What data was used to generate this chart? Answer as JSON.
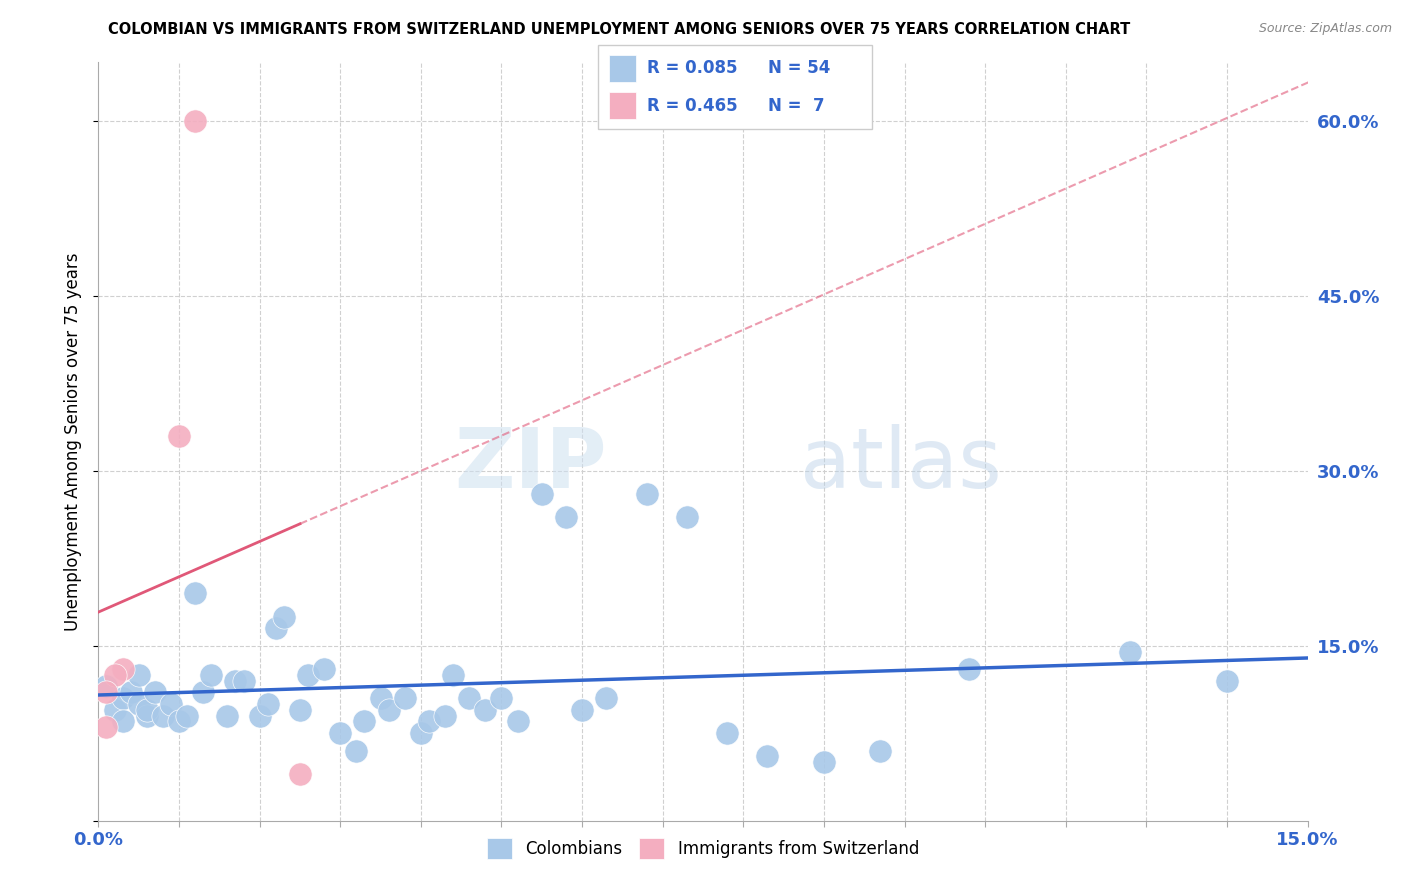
{
  "title": "COLOMBIAN VS IMMIGRANTS FROM SWITZERLAND UNEMPLOYMENT AMONG SENIORS OVER 75 YEARS CORRELATION CHART",
  "source": "Source: ZipAtlas.com",
  "ylabel": "Unemployment Among Seniors over 75 years",
  "xlim": [
    0,
    0.15
  ],
  "ylim": [
    0,
    0.65
  ],
  "yticks": [
    0.0,
    0.15,
    0.3,
    0.45,
    0.6
  ],
  "ytick_labels": [
    "",
    "15.0%",
    "30.0%",
    "45.0%",
    "60.0%"
  ],
  "colombians_R": 0.085,
  "colombians_N": 54,
  "swiss_R": 0.465,
  "swiss_N": 7,
  "colombians_color": "#a8c8e8",
  "colombians_line_color": "#3366cc",
  "swiss_color": "#f4aec0",
  "swiss_line_color": "#e05878",
  "colombians_x": [
    0.001,
    0.002,
    0.003,
    0.003,
    0.004,
    0.005,
    0.005,
    0.006,
    0.006,
    0.007,
    0.008,
    0.009,
    0.01,
    0.011,
    0.012,
    0.013,
    0.014,
    0.016,
    0.017,
    0.018,
    0.02,
    0.021,
    0.022,
    0.023,
    0.025,
    0.026,
    0.028,
    0.03,
    0.032,
    0.033,
    0.035,
    0.036,
    0.038,
    0.04,
    0.041,
    0.043,
    0.044,
    0.046,
    0.048,
    0.05,
    0.052,
    0.055,
    0.058,
    0.06,
    0.063,
    0.068,
    0.073,
    0.078,
    0.083,
    0.09,
    0.097,
    0.108,
    0.128,
    0.14
  ],
  "colombians_y": [
    0.115,
    0.095,
    0.105,
    0.085,
    0.11,
    0.1,
    0.125,
    0.09,
    0.095,
    0.11,
    0.09,
    0.1,
    0.085,
    0.09,
    0.195,
    0.11,
    0.125,
    0.09,
    0.12,
    0.12,
    0.09,
    0.1,
    0.165,
    0.175,
    0.095,
    0.125,
    0.13,
    0.075,
    0.06,
    0.085,
    0.105,
    0.095,
    0.105,
    0.075,
    0.085,
    0.09,
    0.125,
    0.105,
    0.095,
    0.105,
    0.085,
    0.28,
    0.26,
    0.095,
    0.105,
    0.28,
    0.26,
    0.075,
    0.055,
    0.05,
    0.06,
    0.13,
    0.145,
    0.12
  ],
  "swiss_x": [
    0.012,
    0.01,
    0.003,
    0.002,
    0.001,
    0.001,
    0.025
  ],
  "swiss_y": [
    0.6,
    0.33,
    0.13,
    0.125,
    0.11,
    0.08,
    0.04
  ]
}
